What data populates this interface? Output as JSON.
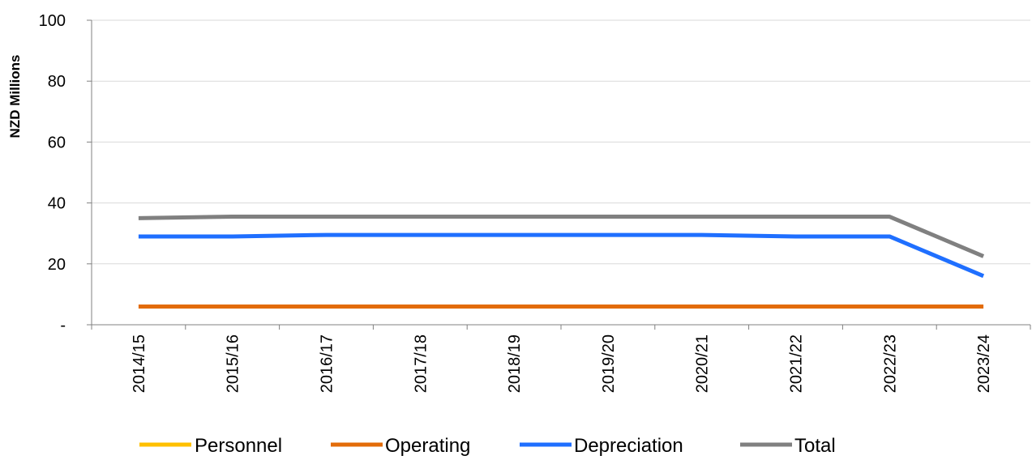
{
  "chart_data": {
    "type": "line",
    "title": "",
    "xlabel": "",
    "ylabel": "NZD Millions",
    "ylim": [
      0,
      100
    ],
    "y_ticks": [
      {
        "value": 0,
        "label": "-"
      },
      {
        "value": 20,
        "label": "20"
      },
      {
        "value": 40,
        "label": "40"
      },
      {
        "value": 60,
        "label": "60"
      },
      {
        "value": 80,
        "label": "80"
      },
      {
        "value": 100,
        "label": "100"
      }
    ],
    "grid": true,
    "legend_position": "bottom",
    "categories": [
      "2014/15",
      "2015/16",
      "2016/17",
      "2017/18",
      "2018/19",
      "2019/20",
      "2020/21",
      "2021/22",
      "2022/23",
      "2023/24"
    ],
    "series": [
      {
        "name": "Personnel",
        "color": "#FFC000",
        "values": [
          0,
          0,
          0,
          0,
          0,
          0,
          0,
          0,
          0,
          0
        ]
      },
      {
        "name": "Operating",
        "color": "#E36C09",
        "values": [
          6,
          6,
          6,
          6,
          6,
          6,
          6,
          6,
          6,
          6
        ]
      },
      {
        "name": "Depreciation",
        "color": "#1F6FFF",
        "values": [
          29,
          29,
          29.5,
          29.5,
          29.5,
          29.5,
          29.5,
          29,
          29,
          16
        ]
      },
      {
        "name": "Total",
        "color": "#808080",
        "values": [
          35,
          35.5,
          35.5,
          35.5,
          35.5,
          35.5,
          35.5,
          35.5,
          35.5,
          22.5
        ]
      }
    ]
  }
}
